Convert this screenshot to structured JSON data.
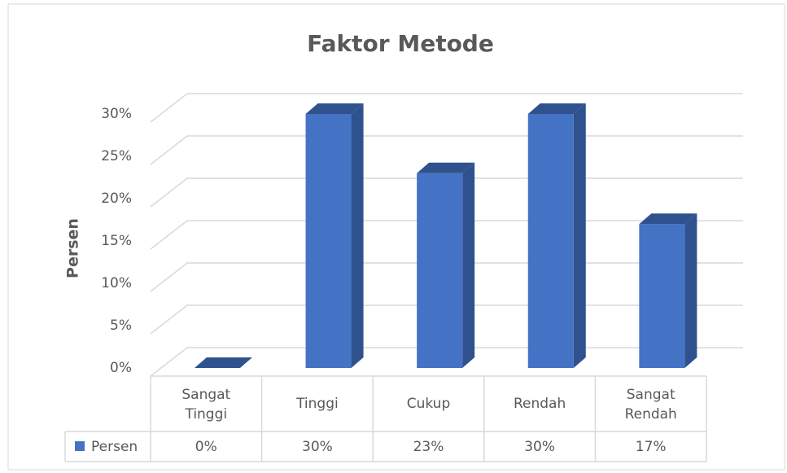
{
  "chart_data": {
    "type": "bar3d",
    "title": "Faktor Metode",
    "y_label": "Persen",
    "categories": [
      "Sangat Tinggi",
      "Tinggi",
      "Cukup",
      "Rendah",
      "Sangat Rendah"
    ],
    "series": [
      {
        "name": "Persen",
        "color": "#4472c4",
        "side_color": "#2f528f",
        "values": [
          0,
          30,
          23,
          30,
          17
        ],
        "value_labels": [
          "0%",
          "30%",
          "23%",
          "30%",
          "17%"
        ]
      }
    ],
    "ylim": [
      0,
      30
    ],
    "yticks": [
      {
        "value": 0,
        "label": "0%"
      },
      {
        "value": 5,
        "label": "5%"
      },
      {
        "value": 10,
        "label": "10%"
      },
      {
        "value": 15,
        "label": "15%"
      },
      {
        "value": 20,
        "label": "20%"
      },
      {
        "value": 25,
        "label": "25%"
      },
      {
        "value": 30,
        "label": "30%"
      }
    ],
    "grid": true,
    "data_table": true
  }
}
